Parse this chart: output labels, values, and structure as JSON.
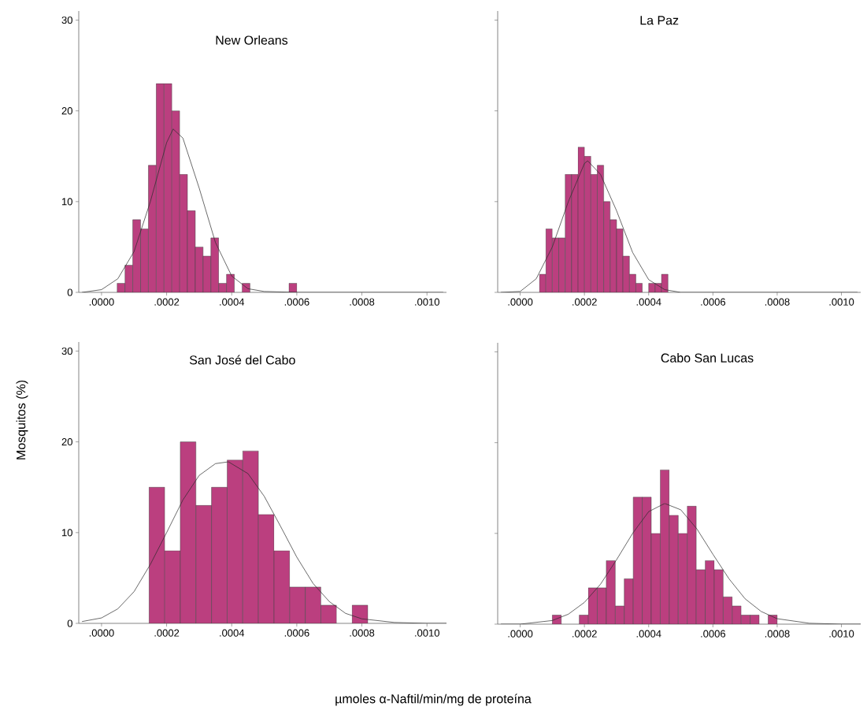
{
  "chart_data": [
    {
      "type": "histogram",
      "title": "New Orleans",
      "color": "#bb3f7f",
      "bins": [
        4.8e-05,
        7.2e-05,
        9.6e-05,
        0.00012,
        0.000144,
        0.000168,
        0.000192,
        0.000216,
        0.00024,
        0.000264,
        0.000288,
        0.000312,
        0.000336,
        0.00036,
        0.000384,
        0.000408,
        0.000432,
        0.000456,
        0.00048,
        0.000504,
        0.000528,
        0.000552,
        0.000576,
        0.0006
      ],
      "values": [
        1,
        3,
        8,
        7,
        14,
        23,
        23,
        20,
        13,
        9,
        5,
        4,
        6,
        1,
        2,
        0,
        1,
        0,
        0,
        0,
        0,
        0,
        1
      ],
      "series": [
        {
          "type": "line",
          "color": "#2b2b2b",
          "x": [
            -6e-05,
            0,
            5e-05,
            0.0001,
            0.00015,
            0.0002,
            0.00022,
            0.00025,
            0.0003,
            0.00035,
            0.0004,
            0.00045,
            0.0005,
            0.0006,
            0.00105
          ],
          "values": [
            0,
            0.3,
            1.5,
            4.5,
            10,
            16.5,
            18,
            17,
            11.5,
            5.5,
            1.8,
            0.4,
            0.1,
            0,
            0
          ]
        }
      ],
      "xlim": [
        -7e-05,
        0.00106
      ],
      "ylim": [
        0,
        31
      ],
      "xticks": [
        {
          "value": 0,
          "label": ".0000"
        },
        {
          "value": 0.0002,
          "label": ".0002"
        },
        {
          "value": 0.0004,
          "label": ".0004"
        },
        {
          "value": 0.0006,
          "label": ".0006"
        },
        {
          "value": 0.0008,
          "label": ".0008"
        },
        {
          "value": 0.001,
          "label": ".0010"
        }
      ],
      "yticks": [
        0,
        10,
        20,
        30
      ]
    },
    {
      "type": "histogram",
      "title": "La Paz",
      "color": "#bb3f7f",
      "bins": [
        6e-05,
        8e-05,
        0.0001,
        0.00012,
        0.00014,
        0.00016,
        0.00018,
        0.0002,
        0.00022,
        0.00024,
        0.00026,
        0.00028,
        0.0003,
        0.00032,
        0.00034,
        0.00036,
        0.00038,
        0.0004,
        0.00042,
        0.00044,
        0.00046
      ],
      "values": [
        2,
        7,
        6,
        6,
        13,
        13,
        16,
        15,
        13,
        14,
        10,
        8,
        7,
        4,
        2,
        1,
        0,
        1,
        1,
        2
      ],
      "series": [
        {
          "type": "line",
          "color": "#2b2b2b",
          "x": [
            -6e-05,
            0,
            5e-05,
            0.0001,
            0.00015,
            0.0002,
            0.00021,
            0.00025,
            0.0003,
            0.00035,
            0.0004,
            0.00045,
            0.0005,
            0.00105
          ],
          "values": [
            0,
            0.1,
            1.5,
            5,
            10,
            14.2,
            14.5,
            13,
            9,
            4.4,
            1.4,
            0.3,
            0,
            0
          ]
        }
      ],
      "xlim": [
        -7e-05,
        0.00106
      ],
      "ylim": [
        0,
        31
      ],
      "tick_labels": "x",
      "xticks": [
        {
          "value": 0,
          "label": ".0000"
        },
        {
          "value": 0.0002,
          "label": ".0002"
        },
        {
          "value": 0.0004,
          "label": ".0004"
        },
        {
          "value": 0.0006,
          "label": ".0006"
        },
        {
          "value": 0.0008,
          "label": ".0008"
        },
        {
          "value": 0.001,
          "label": ".0010"
        }
      ],
      "yticks": [
        0,
        10,
        20,
        30
      ]
    },
    {
      "type": "histogram",
      "title": "San José del Cabo",
      "color": "#bb3f7f",
      "bins": [
        0.000146,
        0.000194,
        0.000242,
        0.00029,
        0.000338,
        0.000386,
        0.000434,
        0.000482,
        0.00053,
        0.000578,
        0.000626,
        0.000674,
        0.000722,
        0.00077,
        0.000818
      ],
      "values": [
        15,
        8,
        20,
        13,
        15,
        18,
        19,
        12,
        8,
        4,
        4,
        2,
        0,
        2
      ],
      "series": [
        {
          "type": "line",
          "color": "#2b2b2b",
          "x": [
            -6e-05,
            0,
            5e-05,
            0.0001,
            0.00015,
            0.0002,
            0.00025,
            0.0003,
            0.00035,
            0.00039,
            0.00045,
            0.0005,
            0.00055,
            0.0006,
            0.00065,
            0.0007,
            0.00075,
            0.0008,
            0.0009,
            0.001,
            0.00106
          ],
          "values": [
            0.2,
            0.6,
            1.6,
            3.5,
            6.5,
            10,
            13.6,
            16.3,
            17.6,
            17.8,
            16.5,
            14,
            10.7,
            7.3,
            4.4,
            2.4,
            1.1,
            0.5,
            0.1,
            0,
            0
          ]
        }
      ],
      "xlim": [
        -7e-05,
        0.00106
      ],
      "ylim": [
        0,
        31
      ],
      "xticks": [
        {
          "value": 0,
          "label": ".0000"
        },
        {
          "value": 0.0002,
          "label": ".0002"
        },
        {
          "value": 0.0004,
          "label": ".0004"
        },
        {
          "value": 0.0006,
          "label": ".0006"
        },
        {
          "value": 0.0008,
          "label": ".0008"
        },
        {
          "value": 0.001,
          "label": ".0010"
        }
      ],
      "yticks": [
        0,
        10,
        20,
        30
      ]
    },
    {
      "type": "histogram",
      "title": "Cabo San Lucas",
      "color": "#bb3f7f",
      "bins": [
        0.0001,
        0.000128,
        0.000156,
        0.000184,
        0.000212,
        0.00024,
        0.000268,
        0.000296,
        0.000324,
        0.000352,
        0.00038,
        0.000408,
        0.000436,
        0.000464,
        0.000492,
        0.00052,
        0.000548,
        0.000576,
        0.000604,
        0.000632,
        0.00066,
        0.000688,
        0.000716,
        0.000744,
        0.000772,
        0.0008
      ],
      "values": [
        1,
        0,
        0,
        1,
        4,
        4,
        7,
        2,
        5,
        14,
        14,
        10,
        17,
        12,
        10,
        13,
        6,
        7,
        6,
        3,
        2,
        1,
        1,
        0,
        1
      ],
      "series": [
        {
          "type": "line",
          "color": "#2b2b2b",
          "x": [
            -6e-05,
            0,
            0.0001,
            0.00015,
            0.0002,
            0.00025,
            0.0003,
            0.00035,
            0.0004,
            0.00045,
            0.0005,
            0.00055,
            0.0006,
            0.00065,
            0.0007,
            0.00075,
            0.0008,
            0.0009,
            0.001,
            0.00106
          ],
          "values": [
            0,
            0,
            0.4,
            1.1,
            2.4,
            4.4,
            7.1,
            10,
            12.4,
            13.3,
            12.6,
            10.5,
            7.7,
            5,
            2.8,
            1.4,
            0.6,
            0.1,
            0,
            0
          ]
        }
      ],
      "xlim": [
        -7e-05,
        0.00106
      ],
      "ylim": [
        0,
        31
      ],
      "tick_labels": "x",
      "xticks": [
        {
          "value": 0,
          "label": ".0000"
        },
        {
          "value": 0.0002,
          "label": ".0002"
        },
        {
          "value": 0.0004,
          "label": ".0004"
        },
        {
          "value": 0.0006,
          "label": ".0006"
        },
        {
          "value": 0.0008,
          "label": ".0008"
        },
        {
          "value": 0.001,
          "label": ".0010"
        }
      ],
      "yticks": [
        0,
        10,
        20,
        30
      ]
    },
    {
      "type": "other",
      "xlabel": "µmoles α-Naftil/min/mg de proteína",
      "ylabel": "Mosquitos (%)"
    }
  ]
}
